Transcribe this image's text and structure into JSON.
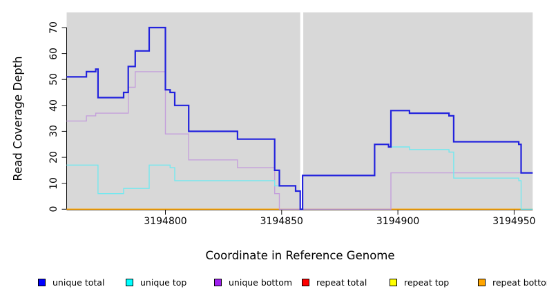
{
  "figure": {
    "x_axis_title": "Coordinate in Reference Genome",
    "y_axis_title": "Read Coverage Depth"
  },
  "chart_data": {
    "type": "line",
    "subtype": "step",
    "title": "",
    "xlabel": "Coordinate in Reference Genome",
    "ylabel": "Read Coverage Depth",
    "grid": false,
    "plot_bg": "#d8d8d8",
    "x_axis": {
      "min": 3194757.5,
      "max": 3194958,
      "ticks": [
        3194800,
        3194850,
        3194900,
        3194950
      ]
    },
    "y_axis": {
      "min": 0,
      "max": 70,
      "ticks": [
        0,
        10,
        20,
        30,
        40,
        50,
        60,
        70
      ]
    },
    "masked_region": {
      "from": 3194858,
      "to": 3194859.3,
      "color": "#ffffff"
    },
    "series": [
      {
        "id": "repeat-total",
        "name": "repeat total",
        "color": "#ff0000",
        "line_color": "#cc2222",
        "width": 1,
        "points": [
          [
            3194757.5,
            0
          ]
        ]
      },
      {
        "id": "repeat-top",
        "name": "repeat top",
        "color": "#ffff00",
        "line_color": "#f0e020",
        "width": 1,
        "points": [
          [
            3194757.5,
            0
          ]
        ]
      },
      {
        "id": "repeat-bottom",
        "name": "repeat bottom",
        "color": "#ffa500",
        "line_color": "#ffa500",
        "width": 1.7,
        "points": [
          [
            3194757.5,
            0
          ]
        ]
      },
      {
        "id": "unique-bottom",
        "name": "unique bottom",
        "color": "#a020f0",
        "line_color": "#c49fdb",
        "width": 1.4,
        "points": [
          [
            3194757.5,
            34
          ],
          [
            3194766,
            36
          ],
          [
            3194770,
            37
          ],
          [
            3194784,
            47
          ],
          [
            3194787,
            53
          ],
          [
            3194800,
            29
          ],
          [
            3194810,
            19
          ],
          [
            3194831,
            16
          ],
          [
            3194847,
            6
          ],
          [
            3194849,
            0
          ],
          [
            3194897,
            14
          ]
        ]
      },
      {
        "id": "unique-top",
        "name": "unique top",
        "color": "#00ffff",
        "line_color": "#74e8ef",
        "width": 1.4,
        "points": [
          [
            3194757.5,
            17
          ],
          [
            3194771,
            6
          ],
          [
            3194782,
            8
          ],
          [
            3194793,
            17
          ],
          [
            3194802,
            16
          ],
          [
            3194804,
            11
          ],
          [
            3194847,
            9
          ],
          [
            3194856,
            7
          ],
          [
            3194858,
            0
          ],
          [
            3194859,
            13
          ],
          [
            3194890,
            25
          ],
          [
            3194896,
            24
          ],
          [
            3194905,
            23
          ],
          [
            3194922,
            22
          ],
          [
            3194924,
            12
          ],
          [
            3194952,
            11
          ],
          [
            3194953,
            0
          ]
        ]
      },
      {
        "id": "unique-total",
        "name": "unique total",
        "color": "#0000ff",
        "line_color": "#2222dd",
        "width": 2.2,
        "points": [
          [
            3194757.5,
            51
          ],
          [
            3194766,
            53
          ],
          [
            3194770,
            54
          ],
          [
            3194771,
            43
          ],
          [
            3194782,
            45
          ],
          [
            3194784,
            55
          ],
          [
            3194787,
            61
          ],
          [
            3194793,
            70
          ],
          [
            3194800,
            46
          ],
          [
            3194802,
            45
          ],
          [
            3194804,
            40
          ],
          [
            3194810,
            30
          ],
          [
            3194831,
            27
          ],
          [
            3194847,
            15
          ],
          [
            3194849,
            9
          ],
          [
            3194856,
            7
          ],
          [
            3194858,
            0
          ],
          [
            3194859,
            13
          ],
          [
            3194890,
            25
          ],
          [
            3194896,
            24
          ],
          [
            3194897,
            38
          ],
          [
            3194905,
            37
          ],
          [
            3194922,
            36
          ],
          [
            3194924,
            26
          ],
          [
            3194952,
            25
          ],
          [
            3194953,
            14
          ]
        ]
      }
    ]
  },
  "legend": {
    "items": [
      {
        "label": "unique total",
        "color": "#0000ff"
      },
      {
        "label": "unique top",
        "color": "#00ffff"
      },
      {
        "label": "unique bottom",
        "color": "#a020f0"
      },
      {
        "label": "repeat total",
        "color": "#ff0000"
      },
      {
        "label": "repeat top",
        "color": "#ffff00"
      },
      {
        "label": "repeat bottom",
        "color": "#ffa500"
      }
    ]
  }
}
